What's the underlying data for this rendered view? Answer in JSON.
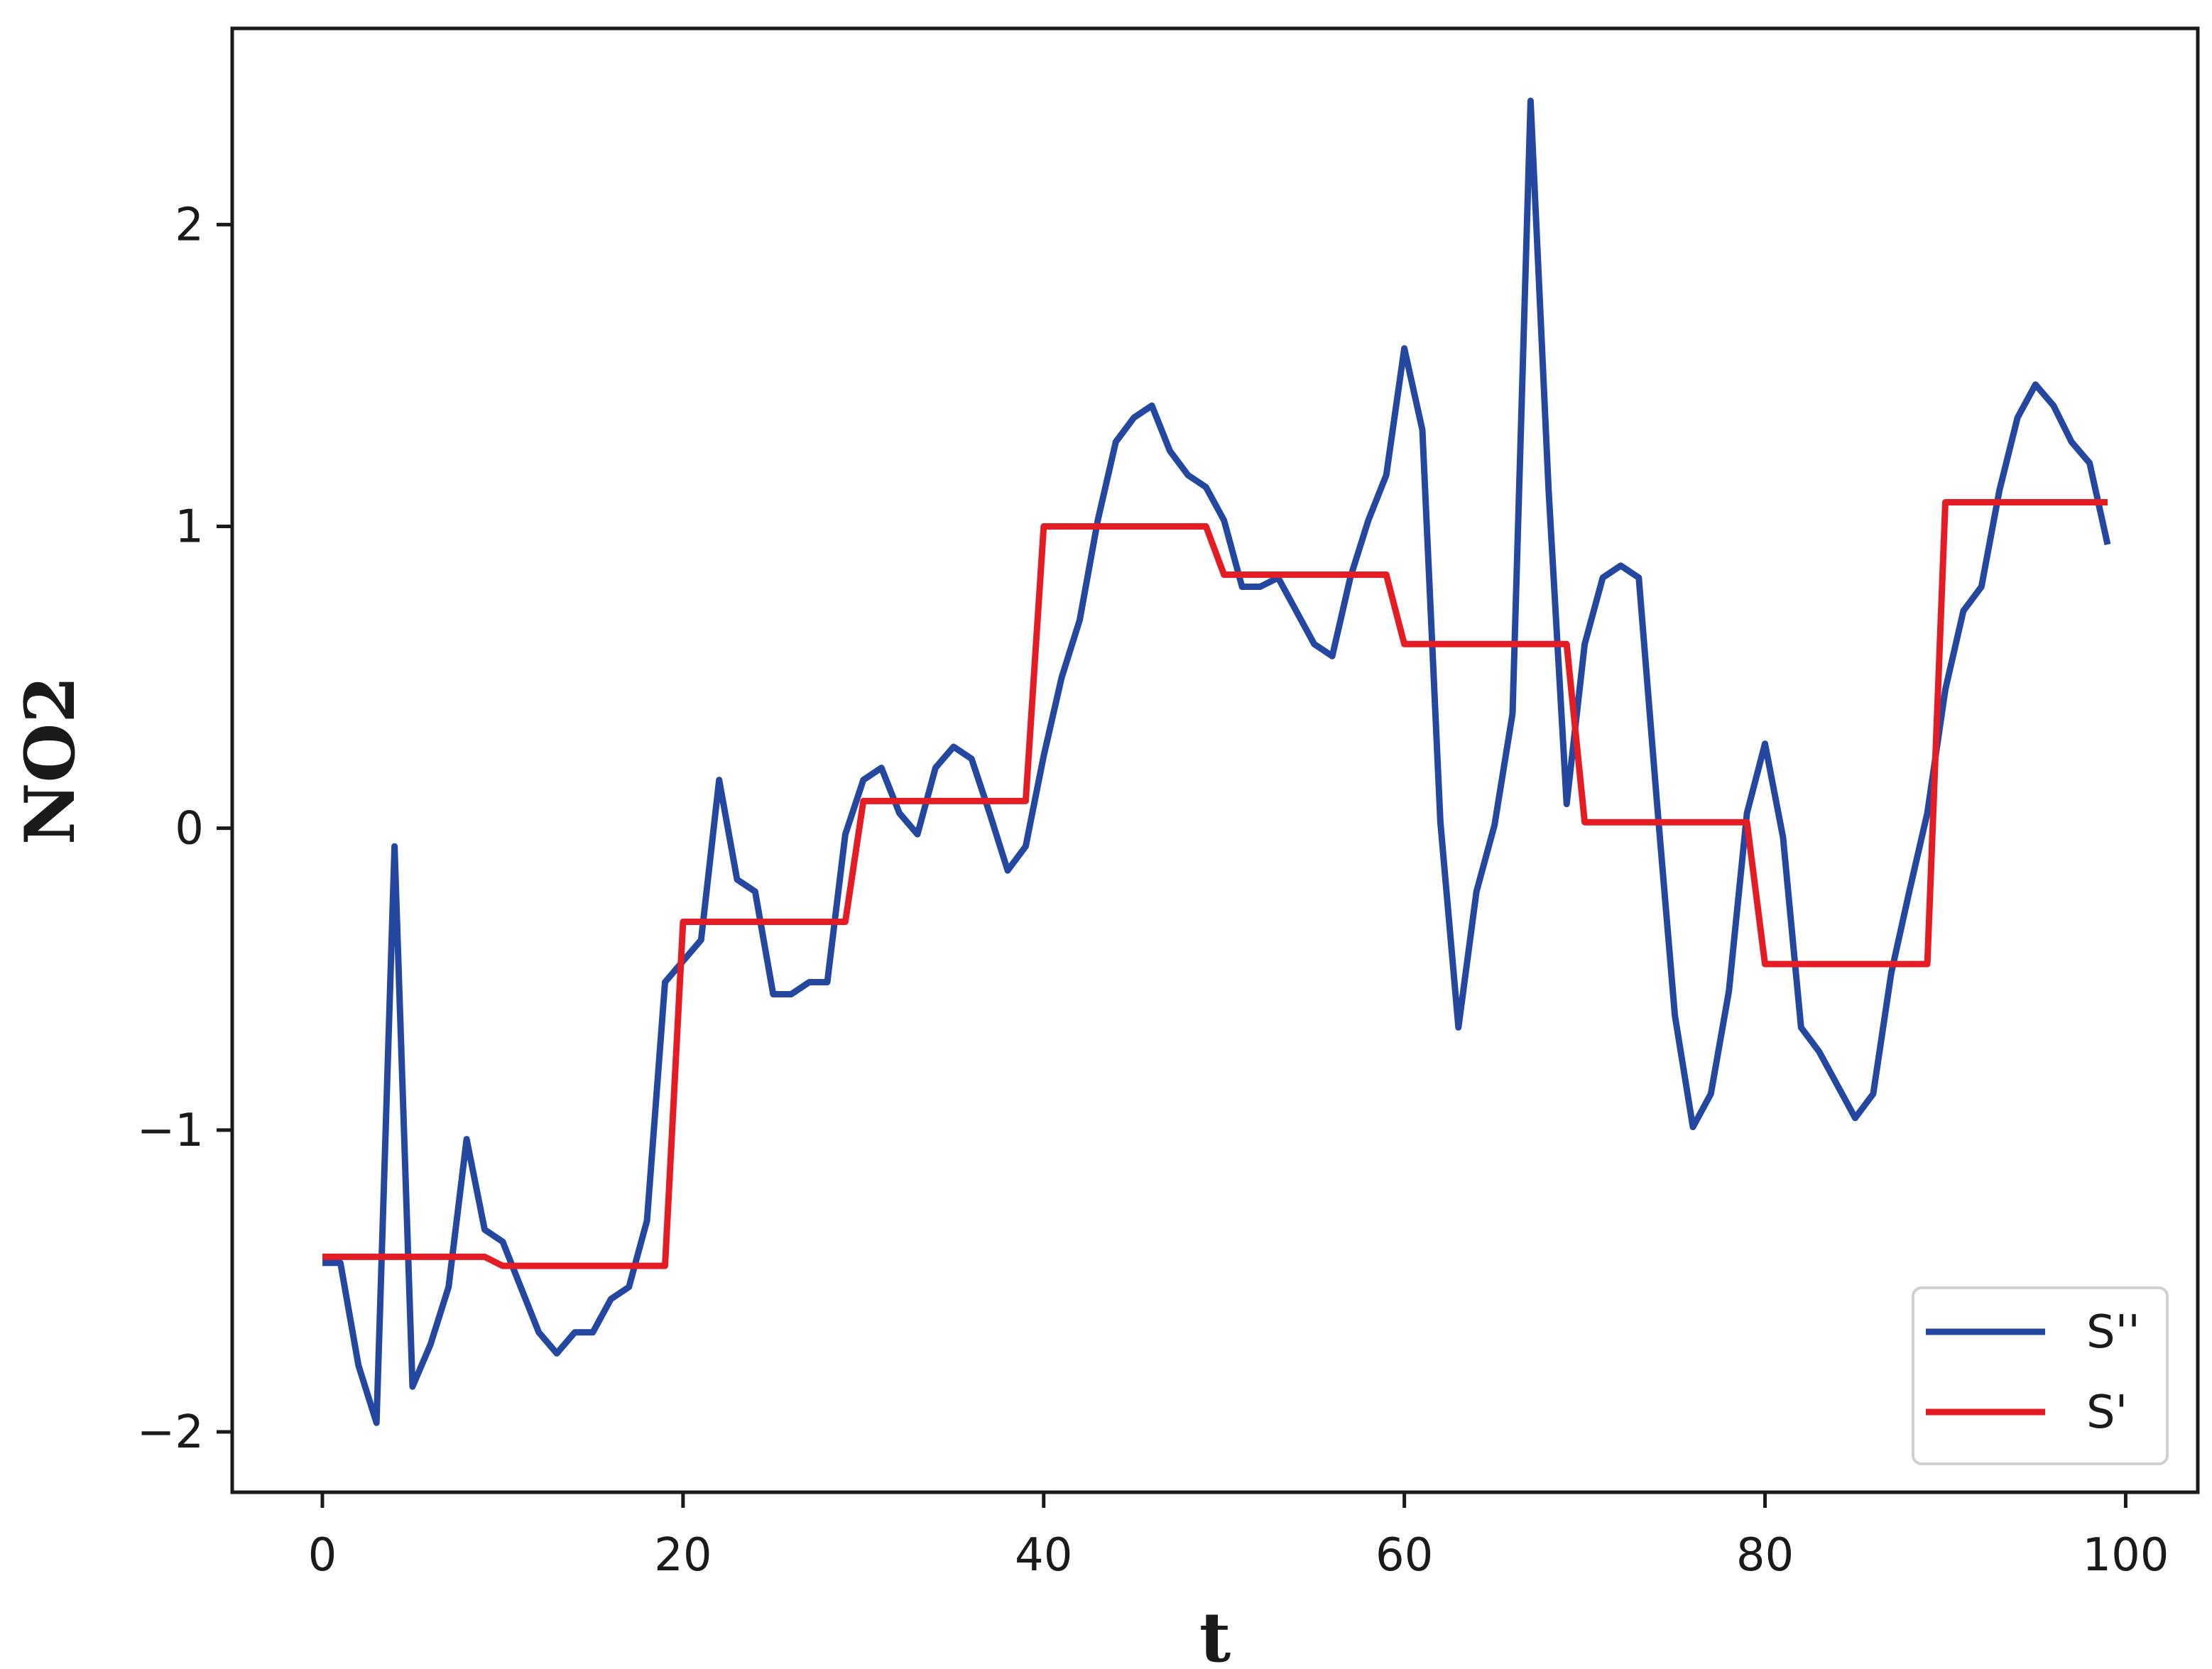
{
  "chart_data": {
    "type": "line",
    "title": "",
    "xlabel": "t",
    "ylabel": "NO2",
    "xlim": [
      -5,
      104
    ],
    "ylim": [
      -2.2,
      2.65
    ],
    "xticks": [
      0,
      20,
      40,
      60,
      80,
      100
    ],
    "xtick_labels": [
      "0",
      "20",
      "40",
      "60",
      "80",
      "100"
    ],
    "yticks": [
      -2,
      -1,
      0,
      1,
      2
    ],
    "ytick_labels": [
      "−2",
      "−1",
      "0",
      "1",
      "2"
    ],
    "grid": false,
    "legend_position": "bottom-right",
    "x": [
      0,
      1,
      2,
      3,
      4,
      5,
      6,
      7,
      8,
      9,
      10,
      11,
      12,
      13,
      14,
      15,
      16,
      17,
      18,
      19,
      20,
      21,
      22,
      23,
      24,
      25,
      26,
      27,
      28,
      29,
      30,
      31,
      32,
      33,
      34,
      35,
      36,
      37,
      38,
      39,
      40,
      41,
      42,
      43,
      44,
      45,
      46,
      47,
      48,
      49,
      50,
      51,
      52,
      53,
      54,
      55,
      56,
      57,
      58,
      59,
      60,
      61,
      62,
      63,
      64,
      65,
      66,
      67,
      68,
      69,
      70,
      71,
      72,
      73,
      74,
      75,
      76,
      77,
      78,
      79,
      80,
      81,
      82,
      83,
      84,
      85,
      86,
      87,
      88,
      89,
      90,
      91,
      92,
      93,
      94,
      95,
      96,
      97,
      98,
      99
    ],
    "series": [
      {
        "name": "S''",
        "color": "#2447a0",
        "values": [
          -1.44,
          -1.44,
          -1.78,
          -1.97,
          -0.06,
          -1.85,
          -1.71,
          -1.52,
          -1.03,
          -1.33,
          -1.37,
          -1.52,
          -1.67,
          -1.74,
          -1.67,
          -1.67,
          -1.56,
          -1.52,
          -1.3,
          -0.51,
          -0.44,
          -0.37,
          0.16,
          -0.17,
          -0.21,
          -0.55,
          -0.55,
          -0.51,
          -0.51,
          -0.02,
          0.16,
          0.2,
          0.05,
          -0.02,
          0.2,
          0.27,
          0.23,
          0.05,
          -0.14,
          -0.06,
          0.24,
          0.5,
          0.69,
          1.02,
          1.28,
          1.36,
          1.4,
          1.25,
          1.17,
          1.13,
          1.02,
          0.8,
          0.8,
          0.83,
          0.72,
          0.61,
          0.57,
          0.83,
          1.02,
          1.17,
          1.59,
          1.32,
          0.02,
          -0.66,
          -0.21,
          0.01,
          0.38,
          2.41,
          1.12,
          0.08,
          0.61,
          0.83,
          0.87,
          0.83,
          0.09,
          -0.62,
          -0.99,
          -0.88,
          -0.54,
          0.05,
          0.28,
          -0.03,
          -0.66,
          -0.74,
          -0.85,
          -0.96,
          -0.88,
          -0.48,
          -0.21,
          0.05,
          0.46,
          0.72,
          0.8,
          1.12,
          1.36,
          1.47,
          1.4,
          1.28,
          1.21,
          0.94
        ]
      },
      {
        "name": "S'",
        "color": "#e41c24",
        "values": [
          -1.42,
          -1.42,
          -1.42,
          -1.42,
          -1.42,
          -1.42,
          -1.42,
          -1.42,
          -1.42,
          -1.42,
          -1.45,
          -1.45,
          -1.45,
          -1.45,
          -1.45,
          -1.45,
          -1.45,
          -1.45,
          -1.45,
          -1.45,
          -0.31,
          -0.31,
          -0.31,
          -0.31,
          -0.31,
          -0.31,
          -0.31,
          -0.31,
          -0.31,
          -0.31,
          0.09,
          0.09,
          0.09,
          0.09,
          0.09,
          0.09,
          0.09,
          0.09,
          0.09,
          0.09,
          1.0,
          1.0,
          1.0,
          1.0,
          1.0,
          1.0,
          1.0,
          1.0,
          1.0,
          1.0,
          0.84,
          0.84,
          0.84,
          0.84,
          0.84,
          0.84,
          0.84,
          0.84,
          0.84,
          0.84,
          0.61,
          0.61,
          0.61,
          0.61,
          0.61,
          0.61,
          0.61,
          0.61,
          0.61,
          0.61,
          0.02,
          0.02,
          0.02,
          0.02,
          0.02,
          0.02,
          0.02,
          0.02,
          0.02,
          0.02,
          -0.45,
          -0.45,
          -0.45,
          -0.45,
          -0.45,
          -0.45,
          -0.45,
          -0.45,
          -0.45,
          -0.45,
          1.08,
          1.08,
          1.08,
          1.08,
          1.08,
          1.08,
          1.08,
          1.08,
          1.08,
          1.08
        ]
      }
    ]
  }
}
